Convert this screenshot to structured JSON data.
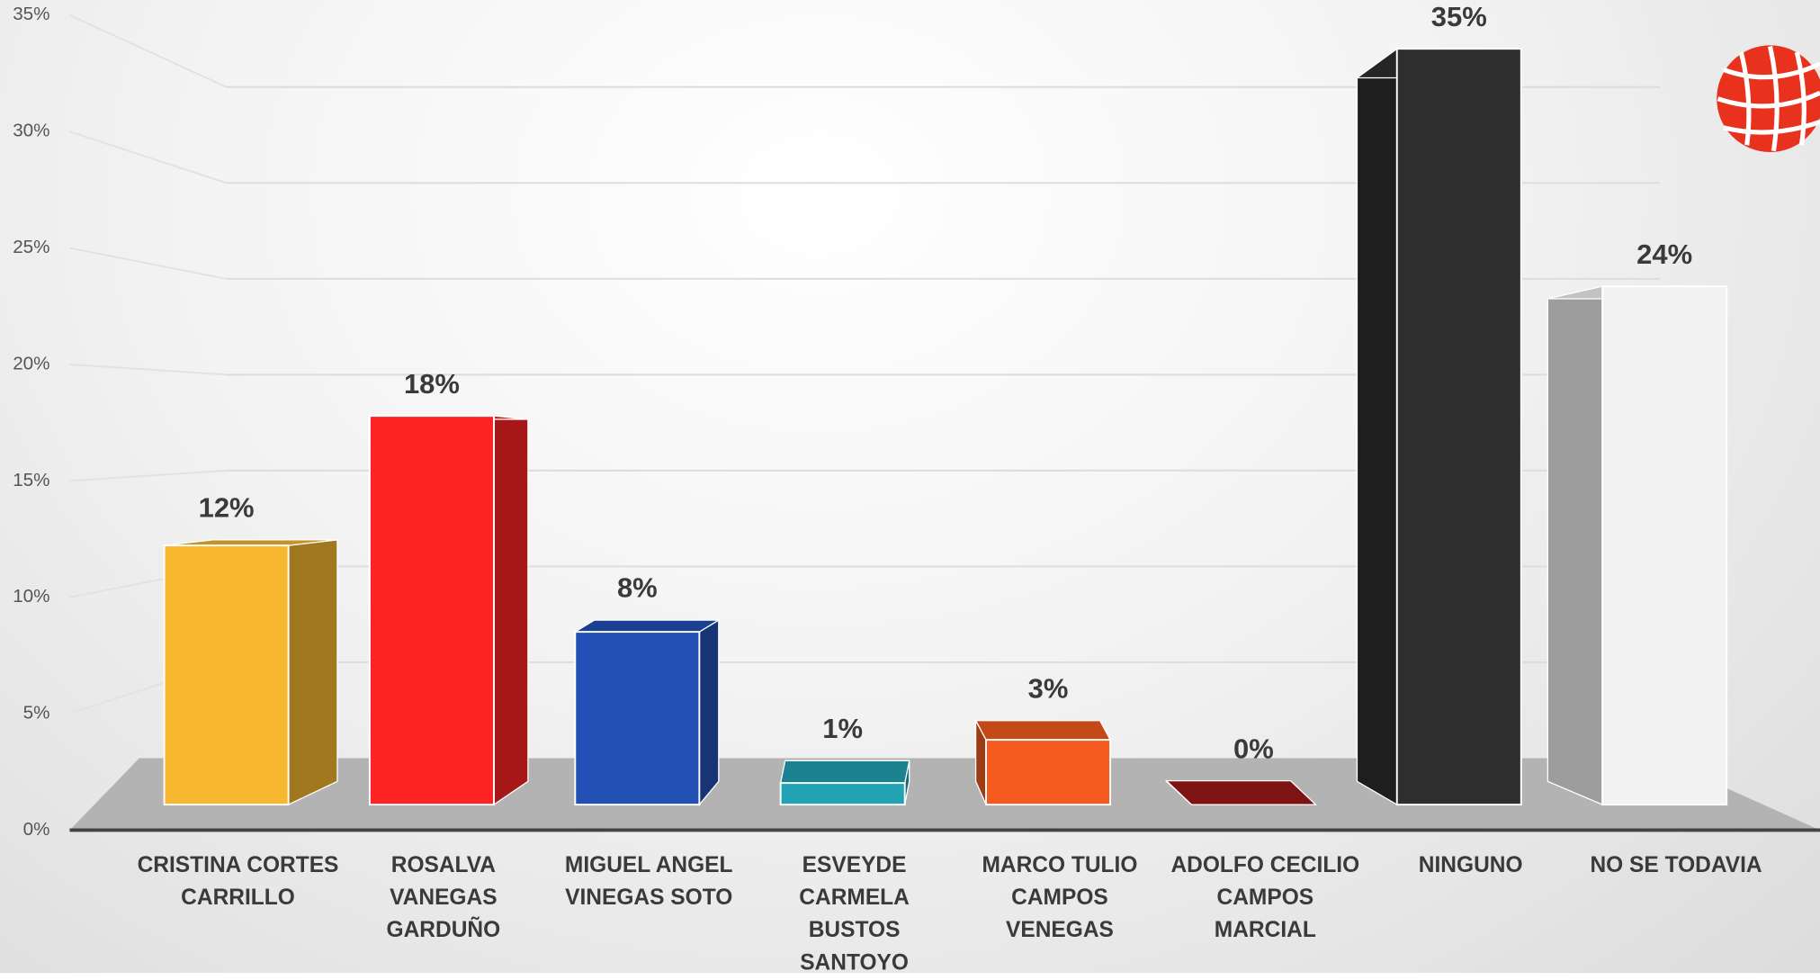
{
  "chart_data": {
    "type": "bar3d",
    "categories": [
      "CRISTINA CORTES CARRILLO",
      "ROSALVA VANEGAS GARDUÑO",
      "MIGUEL ANGEL VINEGAS SOTO",
      "ESVEYDE CARMELA BUSTOS SANTOYO",
      "MARCO TULIO CAMPOS VENEGAS",
      "ADOLFO CECILIO CAMPOS MARCIAL",
      "NINGUNO",
      "NO SE TODAVIA"
    ],
    "values": [
      12,
      18,
      8,
      1,
      3,
      0,
      35,
      24
    ],
    "value_labels": [
      "12%",
      "18%",
      "8%",
      "1%",
      "3%",
      "0%",
      "35%",
      "24%"
    ],
    "colors": [
      "#f7b731",
      "#ff2424",
      "#2350b5",
      "#22a3b3",
      "#f55b1e",
      "#9e1818",
      "#2e2e2e",
      "#f2f2f2"
    ],
    "ylim": [
      0,
      35
    ],
    "yticks": [
      {
        "value": 0,
        "label": "0%"
      },
      {
        "value": 5,
        "label": "5%"
      },
      {
        "value": 10,
        "label": "10%"
      },
      {
        "value": 15,
        "label": "15%"
      },
      {
        "value": 20,
        "label": "20%"
      },
      {
        "value": 25,
        "label": "25%"
      },
      {
        "value": 30,
        "label": "30%"
      },
      {
        "value": 35,
        "label": "35%"
      }
    ],
    "grid": true
  }
}
